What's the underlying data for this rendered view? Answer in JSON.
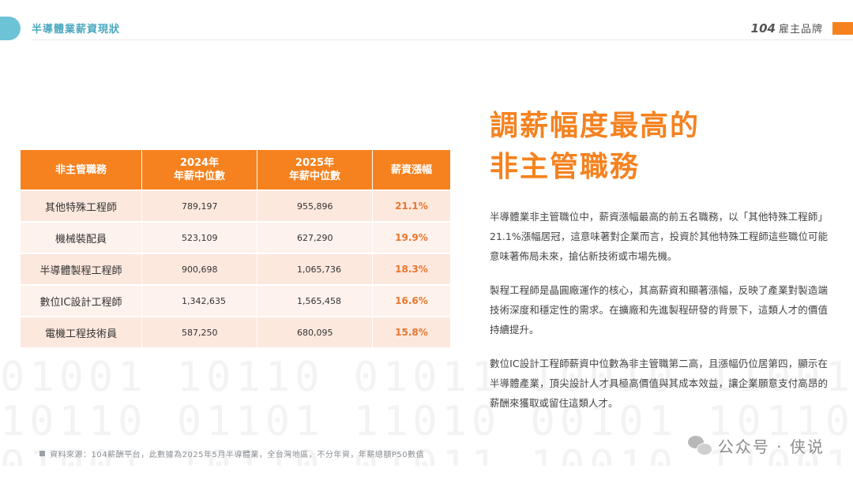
{
  "header": {
    "title": "半導體業薪資現狀",
    "brand_number": "104",
    "brand_name": "雇主品牌"
  },
  "table": {
    "headers": {
      "role": "非主管職務",
      "y2024_line1": "2024年",
      "y2024_line2": "年薪中位數",
      "y2025_line1": "2025年",
      "y2025_line2": "年薪中位數",
      "rise": "薪資漲幅"
    },
    "rows": [
      {
        "role": "其他特殊工程師",
        "y2024": "789,197",
        "y2025": "955,896",
        "rise": "21.1%"
      },
      {
        "role": "機械裝配員",
        "y2024": "523,109",
        "y2025": "627,290",
        "rise": "19.9%"
      },
      {
        "role": "半導體製程工程師",
        "y2024": "900,698",
        "y2025": "1,065,736",
        "rise": "18.3%"
      },
      {
        "role": "數位IC設計工程師",
        "y2024": "1,342,635",
        "y2025": "1,565,458",
        "rise": "16.6%"
      },
      {
        "role": "電機工程技術員",
        "y2024": "587,250",
        "y2025": "680,095",
        "rise": "15.8%"
      }
    ]
  },
  "headline": {
    "line1": "調薪幅度最高的",
    "line2": "非主管職務"
  },
  "paragraphs": [
    "半導體業非主管職位中，薪資漲幅最高的前五名職務，以「其他特殊工程師」21.1%漲幅居冠，這意味著對企業而言，投資於其他特殊工程師這些職位可能意味著佈局未來，搶佔新技術或市場先機。",
    "製程工程師是晶圓廠運作的核心，其高薪資和顯著漲幅，反映了產業對製造端技術深度和穩定性的需求。在擴廠和先進製程研發的背景下，這類人才的價值持續提升。",
    "數位IC設計工程師薪資中位數為非主管職第二高，且漲幅仍位居第四，顯示在半導體產業，頂尖設計人才具極高價值與其成本效益，讓企業願意支付高昂的薪酬來獲取或留住這類人才。"
  ],
  "footer": {
    "source": "資料來源：104薪酬平台，此數據為2025年5月半導體業，全台灣地區，不分年資，年薪總額P50數值"
  },
  "watermark": {
    "text": "公众号 · 侠说"
  },
  "icons": {
    "header_pill": "header-tab-shape",
    "footer_marker": "square-bullet-icon",
    "watermark_icon": "wechat-icon"
  },
  "colors": {
    "accent": "#f5821f",
    "header_teal": "#4aa8c0",
    "row_pink": "#fde8de",
    "row_pink_alt": "#fef2ec"
  }
}
